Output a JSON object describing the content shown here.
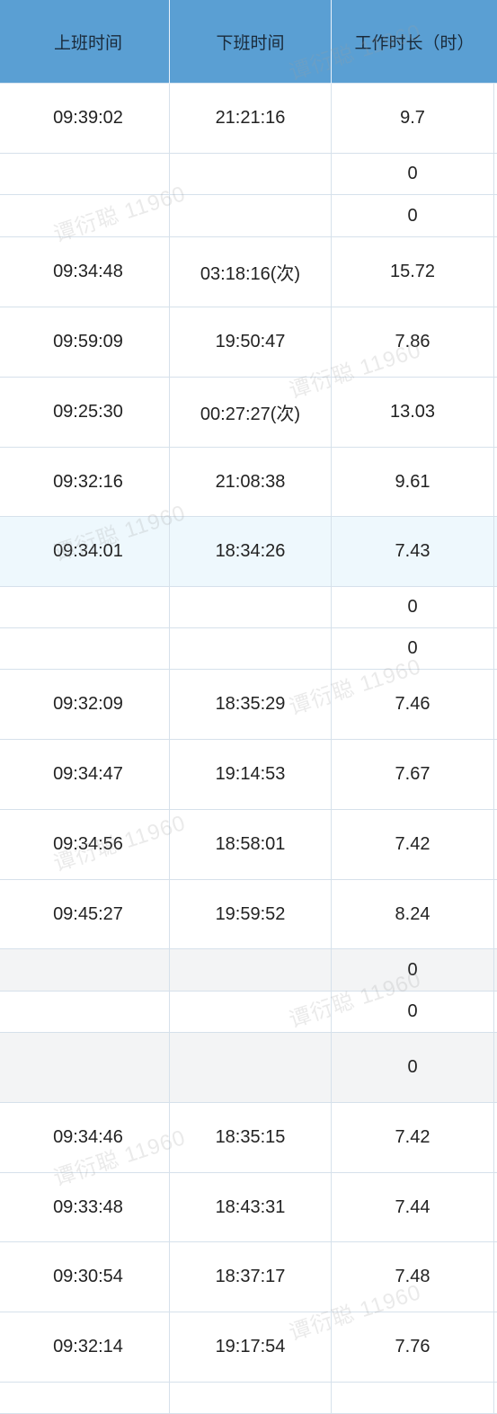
{
  "headers": [
    "上班时间",
    "下班时间",
    "工作时长（时）"
  ],
  "rows": [
    {
      "in": "09:39:02",
      "out": "21:21:16",
      "hours": "9.7"
    },
    {
      "in": "",
      "out": "",
      "hours": "0"
    },
    {
      "in": "",
      "out": "",
      "hours": "0"
    },
    {
      "in": "09:34:48",
      "out": "03:18:16(次)",
      "hours": "15.72"
    },
    {
      "in": "09:59:09",
      "out": "19:50:47",
      "hours": "7.86"
    },
    {
      "in": "09:25:30",
      "out": "00:27:27(次)",
      "hours": "13.03"
    },
    {
      "in": "09:32:16",
      "out": "21:08:38",
      "hours": "9.61"
    },
    {
      "in": "09:34:01",
      "out": "18:34:26",
      "hours": "7.43"
    },
    {
      "in": "",
      "out": "",
      "hours": "0"
    },
    {
      "in": "",
      "out": "",
      "hours": "0"
    },
    {
      "in": "09:32:09",
      "out": "18:35:29",
      "hours": "7.46"
    },
    {
      "in": "09:34:47",
      "out": "19:14:53",
      "hours": "7.67"
    },
    {
      "in": "09:34:56",
      "out": "18:58:01",
      "hours": "7.42"
    },
    {
      "in": "09:45:27",
      "out": "19:59:52",
      "hours": "8.24"
    },
    {
      "in": "",
      "out": "",
      "hours": "0"
    },
    {
      "in": "",
      "out": "",
      "hours": "0"
    },
    {
      "in": "",
      "out": "",
      "hours": "0"
    },
    {
      "in": "09:34:46",
      "out": "18:35:15",
      "hours": "7.42"
    },
    {
      "in": "09:33:48",
      "out": "18:43:31",
      "hours": "7.44"
    },
    {
      "in": "09:30:54",
      "out": "18:37:17",
      "hours": "7.48"
    },
    {
      "in": "09:32:14",
      "out": "19:17:54",
      "hours": "7.76"
    },
    {
      "in": "",
      "out": "",
      "hours": ""
    }
  ],
  "watermark": "谭衍聪 11960",
  "colors": {
    "header_bg": "#5a9fd3",
    "highlight_row": "#eef8fd",
    "weekend_row": "#f3f4f5",
    "grid": "#d6e1eb"
  }
}
